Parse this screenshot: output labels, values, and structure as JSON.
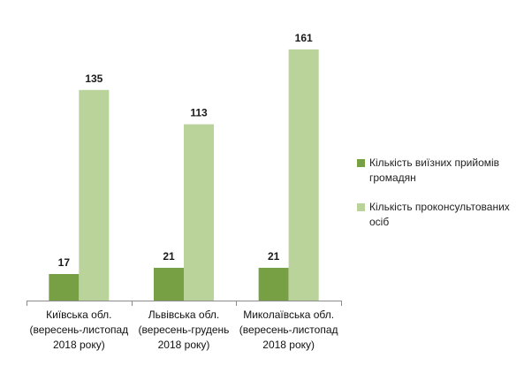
{
  "chart_data": {
    "type": "bar",
    "categories": [
      "Київська обл.\n(вересень-листопад\n2018 року)",
      "Львівська обл.\n(вересень-грудень\n2018 року)",
      "Миколаївська обл.\n(вересень-листопад\n2018 року)"
    ],
    "series": [
      {
        "name": "Кількість виїзних прийомів громадян",
        "values": [
          17,
          21,
          21
        ],
        "color": "#76a043"
      },
      {
        "name": "Кількість проконсультованих осіб",
        "values": [
          135,
          113,
          161
        ],
        "color": "#b9d39a"
      }
    ],
    "ylim": [
      0,
      170
    ],
    "grid": false,
    "legend_position": "right",
    "data_labels": true
  }
}
